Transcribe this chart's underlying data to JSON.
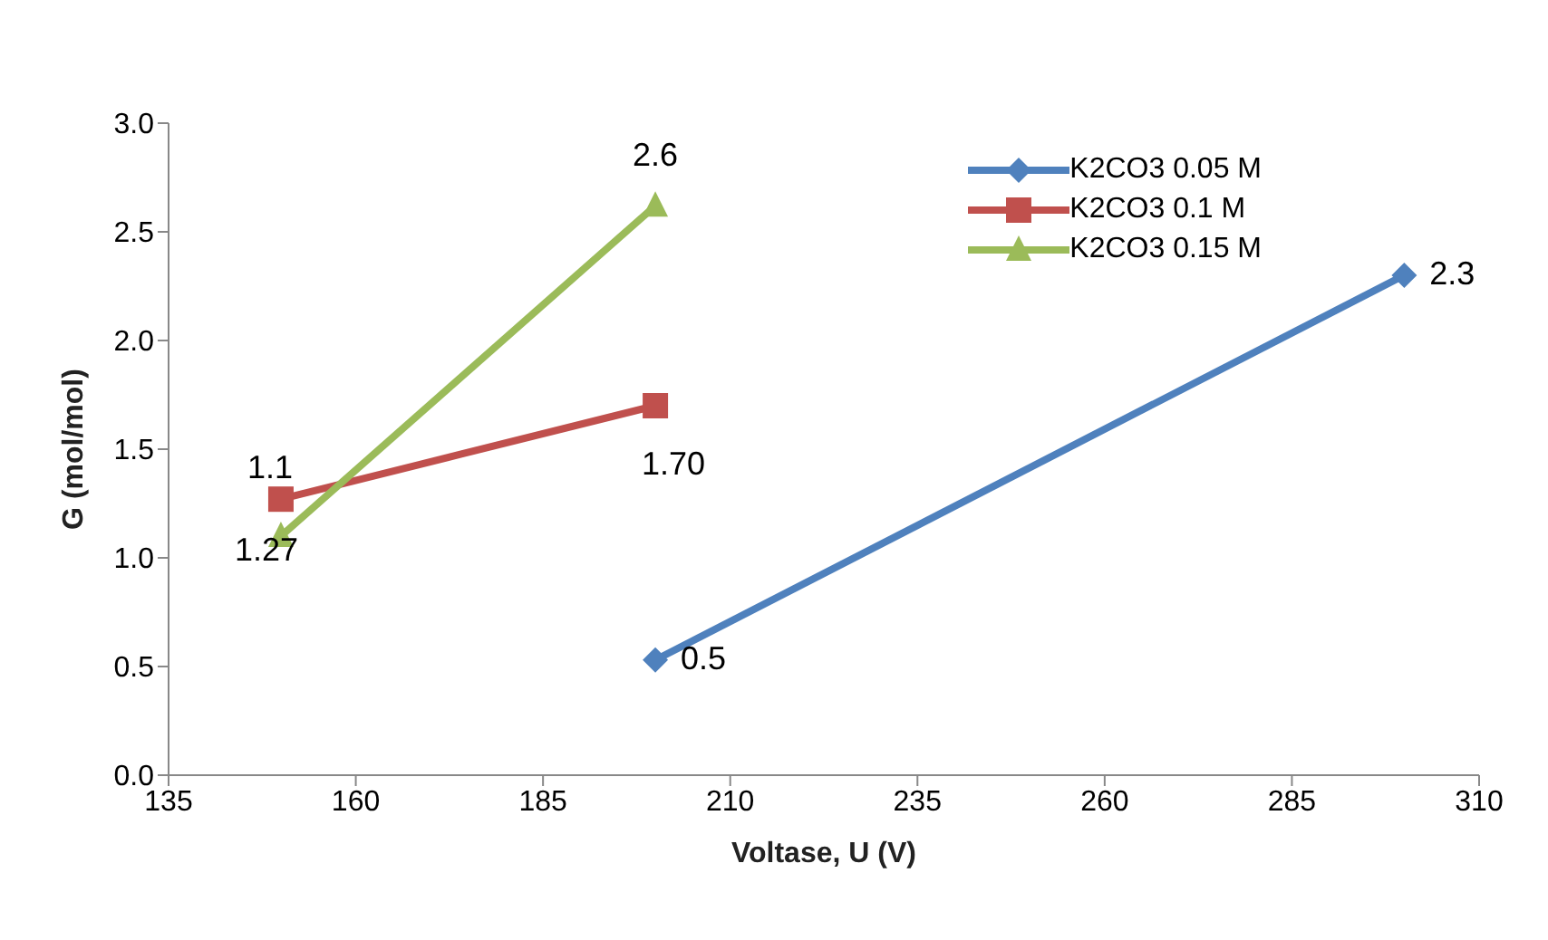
{
  "chart_data": {
    "type": "line",
    "xlabel": "Voltase, U (V)",
    "ylabel": "G (mol/mol)",
    "xlim": [
      135,
      310
    ],
    "xticks": [
      135,
      160,
      185,
      210,
      235,
      260,
      285,
      310
    ],
    "ylim": [
      0,
      3
    ],
    "yticks": [
      {
        "value": 0,
        "label": "0.0"
      },
      {
        "value": 0.5,
        "label": "0.5"
      },
      {
        "value": 1,
        "label": "1.0"
      },
      {
        "value": 1.5,
        "label": "1.5"
      },
      {
        "value": 2,
        "label": "2.0"
      },
      {
        "value": 2.5,
        "label": "2.5"
      },
      {
        "value": 3,
        "label": "3.0"
      }
    ],
    "legend": "top right",
    "grid": false,
    "series": [
      {
        "name": "K2CO3 0.05 M",
        "color": "#4f81bd",
        "marker": "diamond",
        "x": [
          200,
          300
        ],
        "values": [
          0.53,
          2.3
        ],
        "value_labels": [
          "0.5",
          "2.3"
        ]
      },
      {
        "name": "K2CO3 0.1 M",
        "color": "#c0504d",
        "marker": "square",
        "x": [
          150,
          200
        ],
        "values": [
          1.27,
          1.7
        ],
        "value_labels": [
          "1.27",
          "1.70"
        ]
      },
      {
        "name": "K2CO3 0.15 M",
        "color": "#9bbb59",
        "marker": "triangle",
        "x": [
          150,
          200
        ],
        "values": [
          1.1,
          2.62
        ],
        "value_labels": [
          "1.1",
          "2.6"
        ]
      }
    ]
  }
}
